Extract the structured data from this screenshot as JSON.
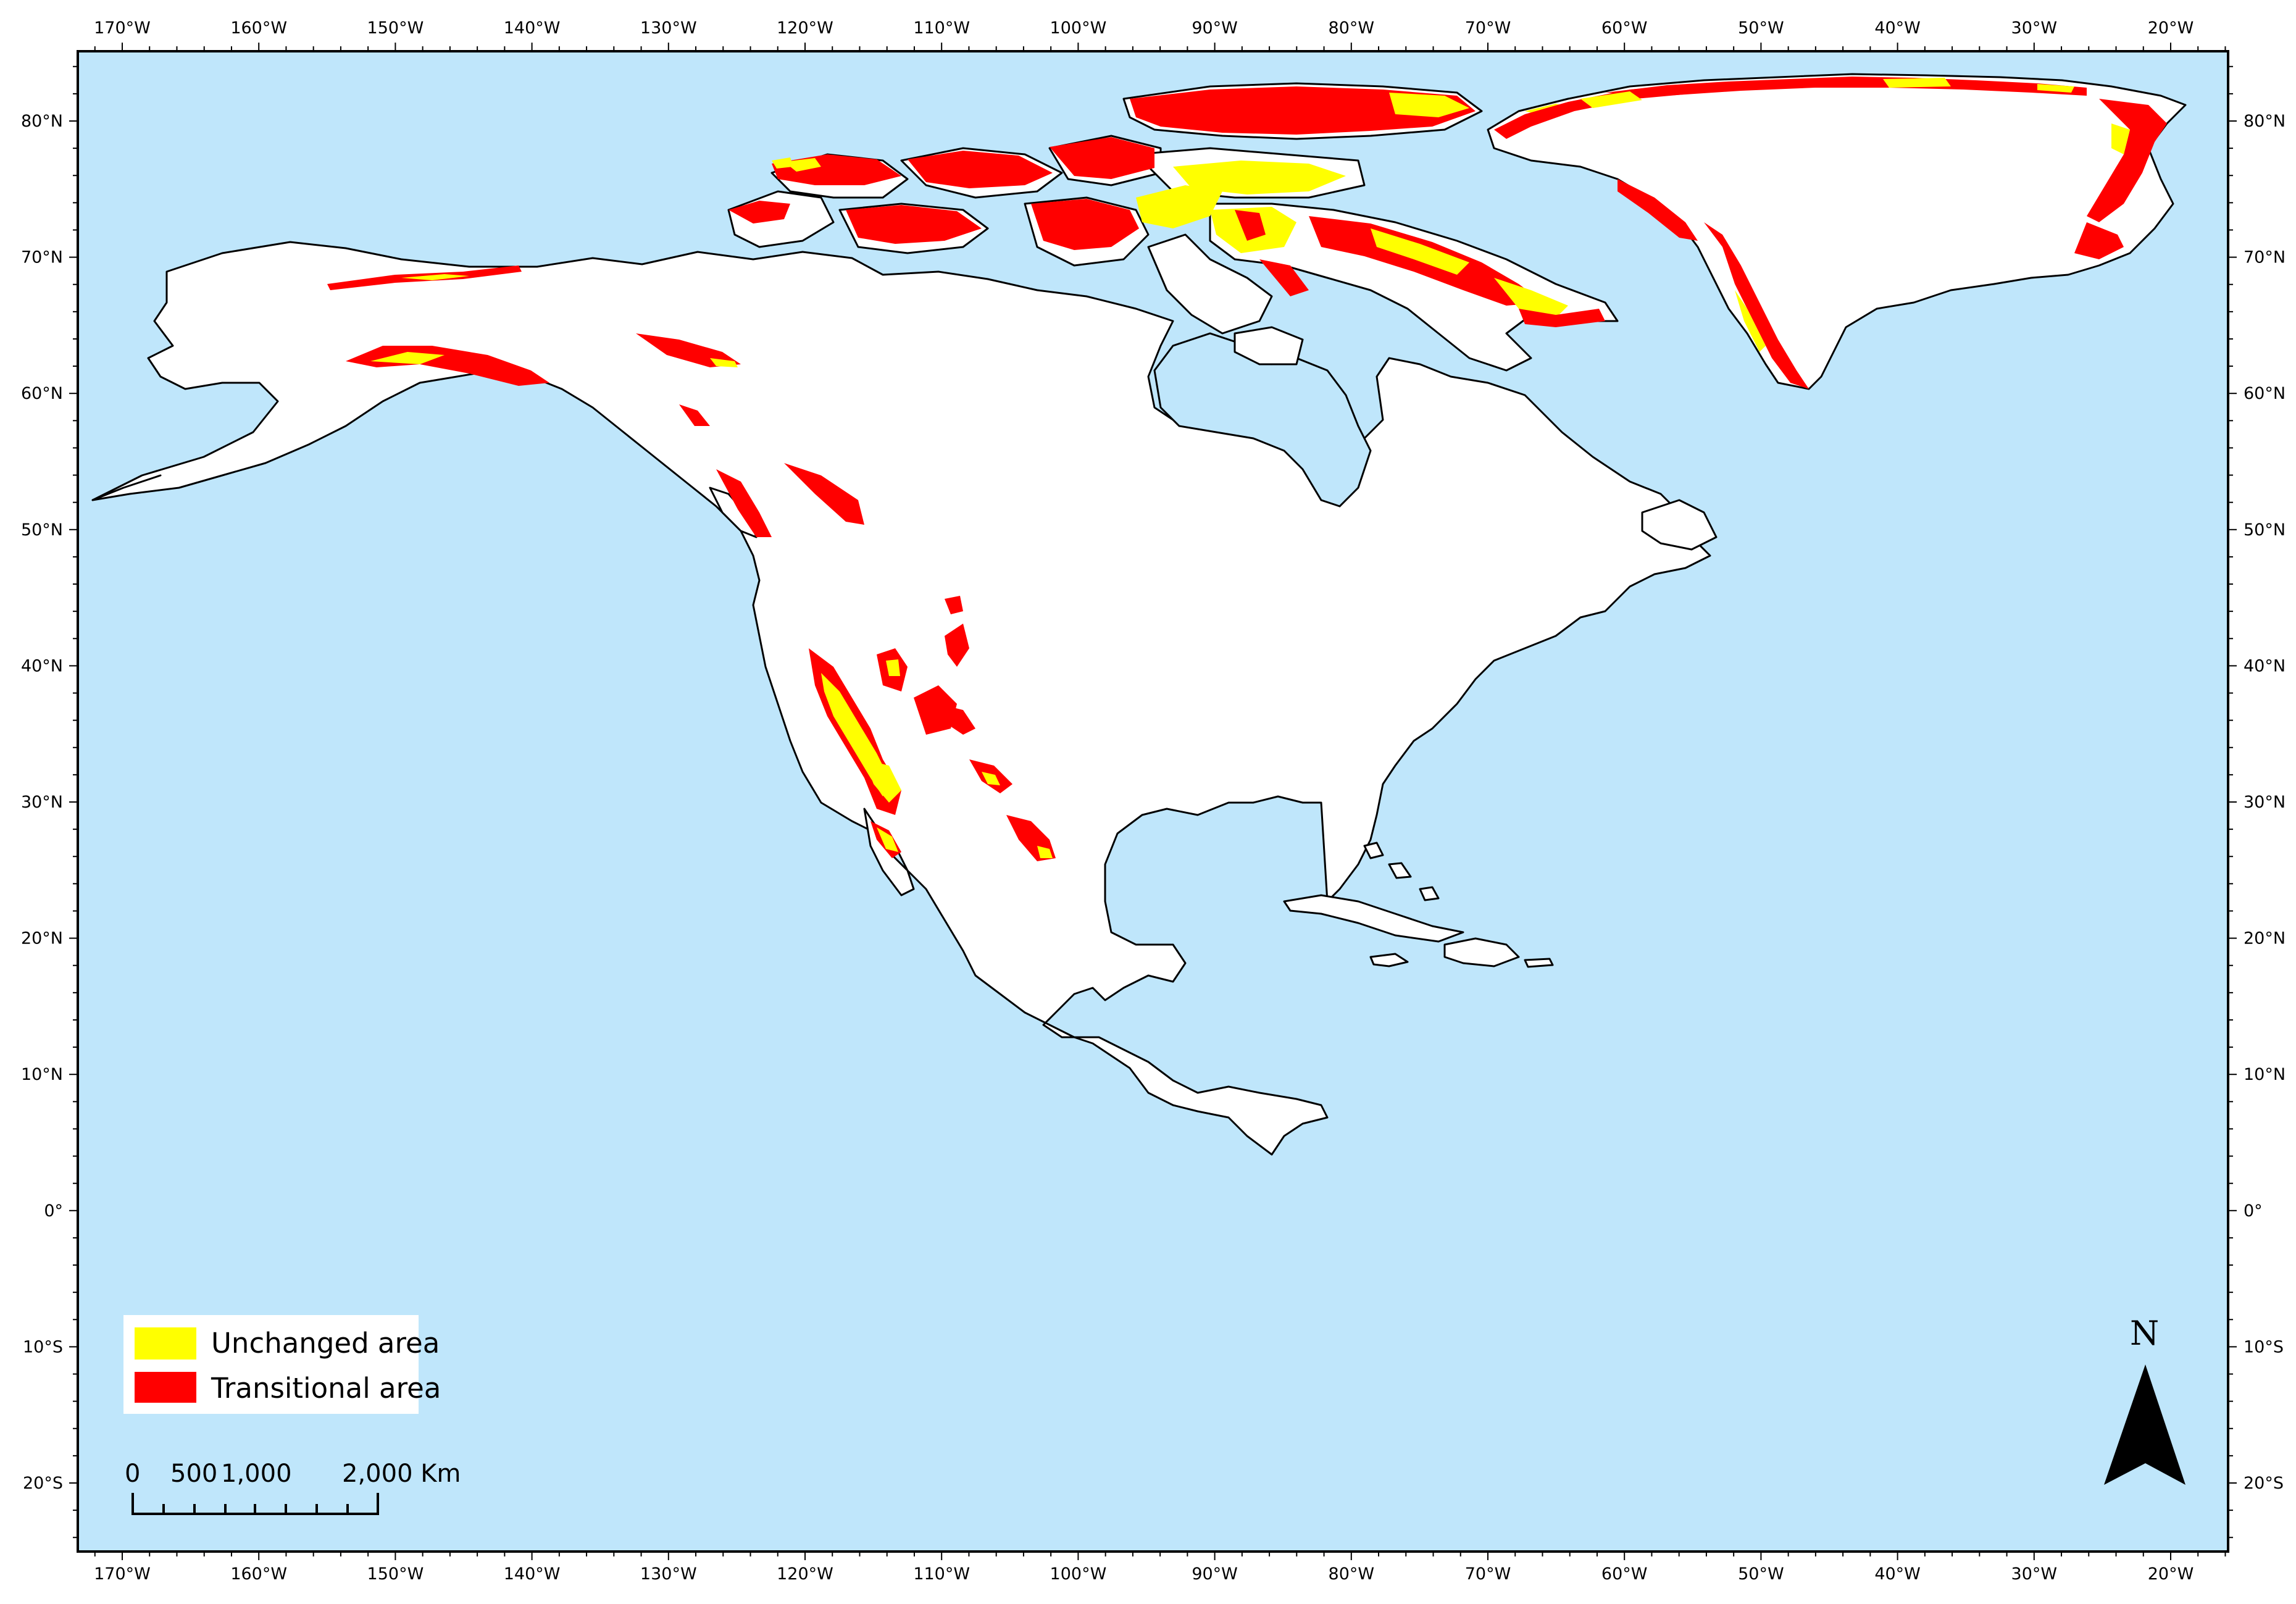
{
  "map": {
    "colors": {
      "ocean": "#bfe6fb",
      "land": "#ffffff",
      "unchanged": "#ffff00",
      "transitional": "#ff0000",
      "frame": "#000000"
    },
    "longitude_labels": [
      "170°W",
      "160°W",
      "150°W",
      "140°W",
      "130°W",
      "120°W",
      "110°W",
      "100°W",
      "90°W",
      "80°W",
      "70°W",
      "60°W",
      "50°W",
      "40°W",
      "30°W",
      "20°W"
    ],
    "latitude_labels": [
      "80°N",
      "70°N",
      "60°N",
      "50°N",
      "40°N",
      "30°N",
      "20°N",
      "10°N",
      "0°",
      "10°S",
      "20°S"
    ],
    "legend": {
      "items": [
        {
          "label": "Unchanged area",
          "color": "#ffff00"
        },
        {
          "label": "Transitional area",
          "color": "#ff0000"
        }
      ]
    },
    "scale_bar": {
      "labels": [
        "0",
        "500",
        "1,000",
        "2,000 Km"
      ]
    },
    "north_arrow": {
      "label": "N"
    }
  }
}
